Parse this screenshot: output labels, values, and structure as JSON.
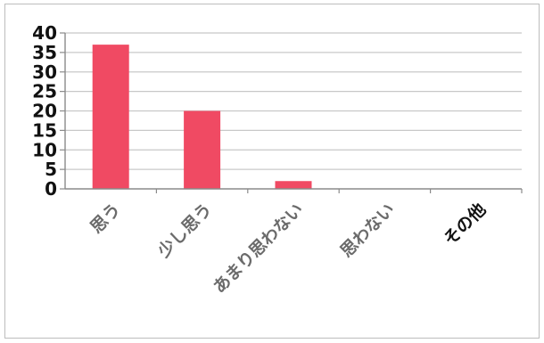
{
  "chart_data": {
    "type": "bar",
    "categories": [
      "思う",
      "少し思う",
      "あまり思わない",
      "思わない",
      "その他"
    ],
    "values": [
      37,
      20,
      2,
      0,
      0
    ],
    "ylim": [
      0,
      40
    ],
    "yticks": [
      "0",
      "5",
      "10",
      "15",
      "20",
      "25",
      "30",
      "35",
      "40"
    ],
    "grid": true,
    "legend": "none",
    "colors": {
      "bar": "#f04a63",
      "category_label": "#6b6b6b",
      "last_category_label": "#111111",
      "grid": "#c8c8c8",
      "axis": "#8a8a8a"
    }
  }
}
